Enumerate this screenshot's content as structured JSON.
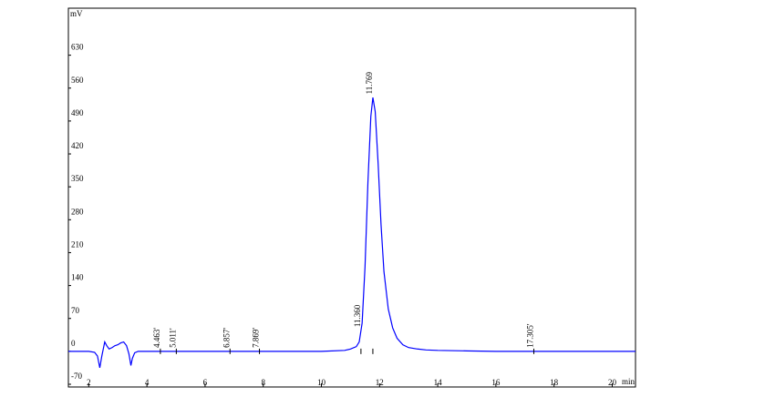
{
  "chart_data": {
    "type": "line",
    "y_label": "mV",
    "x_label": "min",
    "x": [
      1.3,
      2.0,
      2.2,
      2.3,
      2.38,
      2.45,
      2.55,
      2.62,
      2.7,
      2.8,
      2.9,
      3.0,
      3.1,
      3.2,
      3.3,
      3.38,
      3.45,
      3.5,
      3.58,
      3.7,
      4.0,
      5,
      6,
      7,
      8,
      9,
      10,
      10.8,
      11.0,
      11.2,
      11.3,
      11.4,
      11.5,
      11.6,
      11.7,
      11.77,
      11.85,
      11.95,
      12.05,
      12.15,
      12.3,
      12.45,
      12.6,
      12.8,
      13.0,
      13.3,
      13.6,
      14,
      15,
      16,
      17,
      18,
      19,
      20,
      20.8
    ],
    "series": [
      {
        "color": "#0000ff",
        "values": [
          0,
          0,
          -2,
          -10,
          -35,
          -10,
          20,
          12,
          5,
          8,
          12,
          14,
          18,
          20,
          12,
          -5,
          -30,
          -15,
          -3,
          0,
          0,
          0,
          0,
          0,
          0,
          0,
          0,
          2,
          5,
          10,
          20,
          60,
          180,
          360,
          500,
          540,
          510,
          400,
          270,
          170,
          90,
          50,
          28,
          14,
          8,
          5,
          3,
          2,
          1,
          0,
          0,
          0,
          0,
          0,
          0
        ]
      }
    ],
    "annotations": [
      {
        "label": "4.463'",
        "x": 4.463
      },
      {
        "label": "5.011'",
        "x": 5.011
      },
      {
        "label": "6.857'",
        "x": 6.857
      },
      {
        "label": "7.869'",
        "x": 7.869
      },
      {
        "label": "11.360",
        "x": 11.36
      },
      {
        "label": "11.769",
        "x": 11.769
      },
      {
        "label": "17.305'",
        "x": 17.305
      }
    ],
    "xlim": [
      1.3,
      20.8
    ],
    "ylim": [
      -70,
      730
    ],
    "xticks": [
      2,
      4,
      6,
      8,
      10,
      12,
      14,
      16,
      18,
      20
    ],
    "yticks": [
      -70,
      0,
      70,
      140,
      210,
      280,
      350,
      420,
      490,
      560,
      630
    ]
  }
}
